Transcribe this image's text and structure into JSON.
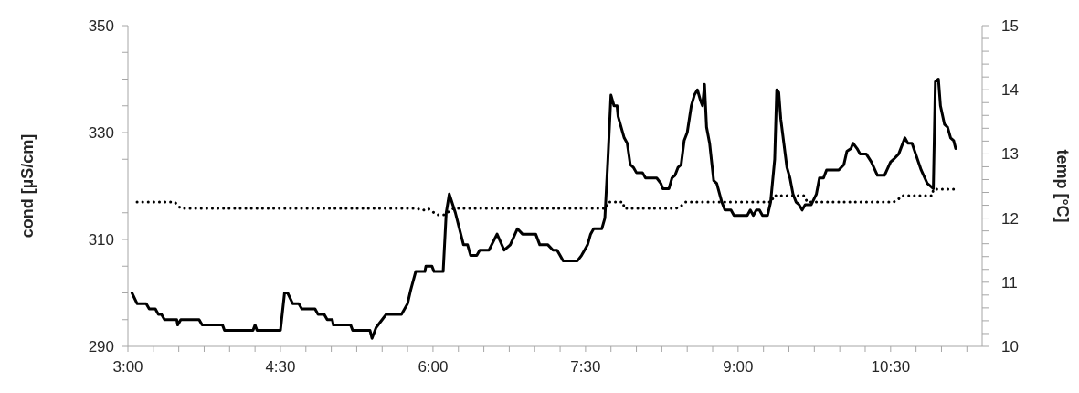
{
  "chart_data": {
    "type": "line",
    "ylabel": "cond [µS/cm]",
    "y2label": "temp  [°C]",
    "xlim": [
      3,
      11.4
    ],
    "xticks": [
      {
        "value": 3,
        "label": "3:00"
      },
      {
        "value": 3.25,
        "label": null
      },
      {
        "value": 3.5,
        "label": null
      },
      {
        "value": 3.75,
        "label": null
      },
      {
        "value": 4,
        "label": null
      },
      {
        "value": 4.25,
        "label": null
      },
      {
        "value": 4.5,
        "label": "4:30"
      },
      {
        "value": 4.75,
        "label": null
      },
      {
        "value": 5,
        "label": null
      },
      {
        "value": 5.25,
        "label": null
      },
      {
        "value": 5.5,
        "label": null
      },
      {
        "value": 5.75,
        "label": null
      },
      {
        "value": 6,
        "label": "6:00"
      },
      {
        "value": 6.25,
        "label": null
      },
      {
        "value": 6.5,
        "label": null
      },
      {
        "value": 6.75,
        "label": null
      },
      {
        "value": 7,
        "label": null
      },
      {
        "value": 7.25,
        "label": null
      },
      {
        "value": 7.5,
        "label": "7:30"
      },
      {
        "value": 7.75,
        "label": null
      },
      {
        "value": 8,
        "label": null
      },
      {
        "value": 8.25,
        "label": null
      },
      {
        "value": 8.5,
        "label": null
      },
      {
        "value": 8.75,
        "label": null
      },
      {
        "value": 9,
        "label": "9:00"
      },
      {
        "value": 9.25,
        "label": null
      },
      {
        "value": 9.5,
        "label": null
      },
      {
        "value": 9.75,
        "label": null
      },
      {
        "value": 10,
        "label": null
      },
      {
        "value": 10.25,
        "label": null
      },
      {
        "value": 10.5,
        "label": "10:30"
      },
      {
        "value": 10.75,
        "label": null
      },
      {
        "value": 11,
        "label": null
      },
      {
        "value": 11.25,
        "label": null
      }
    ],
    "ylim": [
      290,
      350
    ],
    "yticks": [
      290,
      {
        "value": 295,
        "label": null
      },
      {
        "value": 300,
        "label": null
      },
      {
        "value": 305,
        "label": null
      },
      310,
      {
        "value": 315,
        "label": null
      },
      {
        "value": 320,
        "label": null
      },
      {
        "value": 325,
        "label": null
      },
      330,
      {
        "value": 335,
        "label": null
      },
      {
        "value": 340,
        "label": null
      },
      {
        "value": 345,
        "label": null
      },
      350
    ],
    "y2lim": [
      10,
      15
    ],
    "y2ticks": [
      10,
      {
        "value": 10.2,
        "label": null
      },
      {
        "value": 10.4,
        "label": null
      },
      {
        "value": 10.6,
        "label": null
      },
      {
        "value": 10.8,
        "label": null
      },
      11,
      {
        "value": 11.2,
        "label": null
      },
      {
        "value": 11.4,
        "label": null
      },
      {
        "value": 11.6,
        "label": null
      },
      {
        "value": 11.8,
        "label": null
      },
      12,
      {
        "value": 12.2,
        "label": null
      },
      {
        "value": 12.4,
        "label": null
      },
      {
        "value": 12.6,
        "label": null
      },
      {
        "value": 12.8,
        "label": null
      },
      13,
      {
        "value": 13.2,
        "label": null
      },
      {
        "value": 13.4,
        "label": null
      },
      {
        "value": 13.6,
        "label": null
      },
      {
        "value": 13.8,
        "label": null
      },
      14,
      {
        "value": 14.2,
        "label": null
      },
      {
        "value": 14.4,
        "label": null
      },
      {
        "value": 14.6,
        "label": null
      },
      {
        "value": 14.8,
        "label": null
      },
      15
    ],
    "marker": "none",
    "series": [
      {
        "color": "#000000",
        "line_style": "solid",
        "x": [
          3.04,
          3.09,
          3.18,
          3.21,
          3.27,
          3.3,
          3.33,
          3.36,
          3.48,
          3.49,
          3.52,
          3.7,
          3.73,
          3.93,
          3.95,
          4.23,
          4.25,
          4.27,
          4.5,
          4.54,
          4.57,
          4.62,
          4.68,
          4.71,
          4.84,
          4.87,
          4.93,
          4.96,
          5.01,
          5.02,
          5.19,
          5.21,
          5.38,
          5.4,
          5.44,
          5.5,
          5.54,
          5.69,
          5.75,
          5.78,
          5.83,
          5.92,
          5.93,
          5.99,
          6.01,
          6.1,
          6.13,
          6.16,
          6.22,
          6.26,
          6.3,
          6.34,
          6.37,
          6.43,
          6.46,
          6.55,
          6.63,
          6.7,
          6.76,
          6.83,
          6.88,
          7.01,
          7.05,
          7.13,
          7.18,
          7.22,
          7.25,
          7.28,
          7.42,
          7.46,
          7.49,
          7.52,
          7.55,
          7.58,
          7.66,
          7.69,
          7.72,
          7.75,
          7.78,
          7.81,
          7.82,
          7.88,
          7.91,
          7.94,
          7.97,
          8.0,
          8.06,
          8.09,
          8.2,
          8.24,
          8.26,
          8.32,
          8.35,
          8.38,
          8.41,
          8.44,
          8.47,
          8.5,
          8.54,
          8.57,
          8.6,
          8.63,
          8.65,
          8.67,
          8.69,
          8.72,
          8.76,
          8.79,
          8.84,
          8.87,
          8.93,
          8.96,
          9.09,
          9.12,
          9.15,
          9.18,
          9.21,
          9.24,
          9.29,
          9.32,
          9.36,
          9.38,
          9.4,
          9.42,
          9.45,
          9.48,
          9.51,
          9.54,
          9.57,
          9.6,
          9.63,
          9.66,
          9.72,
          9.77,
          9.8,
          9.84,
          9.87,
          9.99,
          10.04,
          10.07,
          10.11,
          10.13,
          10.17,
          10.2,
          10.26,
          10.31,
          10.37,
          10.44,
          10.5,
          10.53,
          10.58,
          10.64,
          10.67,
          10.71,
          10.8,
          10.86,
          10.92,
          10.94,
          10.97,
          10.99,
          11.03,
          11.06,
          11.09,
          11.12,
          11.14
        ],
        "values": [
          300,
          298,
          298,
          297,
          297,
          296,
          296,
          295,
          295,
          294,
          295,
          295,
          294,
          294,
          293,
          293,
          294,
          293,
          293,
          300,
          300,
          298,
          298,
          297,
          297,
          296,
          296,
          295,
          295,
          294,
          294,
          293,
          293,
          291.5,
          293.5,
          295,
          296,
          296,
          298,
          300.5,
          304,
          304,
          305,
          305,
          304,
          304,
          315,
          318.5,
          315,
          312,
          309,
          309,
          307,
          307,
          308,
          308,
          311,
          308,
          309,
          312,
          311,
          311,
          309,
          309,
          308,
          308,
          307,
          306,
          306,
          307,
          308,
          309,
          311,
          312,
          312,
          314,
          325,
          337,
          335,
          335,
          333,
          329,
          328,
          324,
          323.5,
          322.5,
          322.5,
          321.5,
          321.5,
          320.5,
          319.5,
          319.5,
          321.5,
          322,
          323.5,
          324,
          328.5,
          330,
          335,
          337,
          338,
          336,
          335,
          339,
          331,
          328,
          321,
          320.5,
          317,
          315.5,
          315.5,
          314.5,
          314.5,
          315.5,
          314.5,
          315.5,
          315.5,
          314.5,
          314.5,
          317,
          325,
          338,
          337.5,
          332.5,
          328,
          323.5,
          321.5,
          318.5,
          317,
          316.5,
          315.5,
          316.5,
          316.5,
          318.5,
          321.5,
          321.5,
          323,
          323,
          324,
          326.5,
          327,
          328,
          327,
          326,
          326,
          324.5,
          322,
          322,
          324.5,
          325,
          326,
          329,
          328,
          328,
          323,
          320.5,
          319.5,
          339.5,
          340,
          335,
          331.5,
          331,
          329,
          328.5,
          327
        ]
      },
      {
        "color": "#000000",
        "line_style": "dotted",
        "axis": "y2",
        "x": [
          3.09,
          3.46,
          3.52,
          5.84,
          5.9,
          5.95,
          6.04,
          6.11,
          6.2,
          7.7,
          7.72,
          7.87,
          7.88,
          8.39,
          8.45,
          8.48,
          9.33,
          9.35,
          9.65,
          9.68,
          10.53,
          10.58,
          10.61,
          10.91,
          10.92,
          11.15
        ],
        "values": [
          12.25,
          12.25,
          12.15,
          12.15,
          12.12,
          12.15,
          12.05,
          12.05,
          12.15,
          12.15,
          12.25,
          12.25,
          12.15,
          12.15,
          12.2,
          12.25,
          12.25,
          12.35,
          12.35,
          12.25,
          12.25,
          12.3,
          12.35,
          12.35,
          12.45,
          12.45
        ]
      }
    ]
  }
}
